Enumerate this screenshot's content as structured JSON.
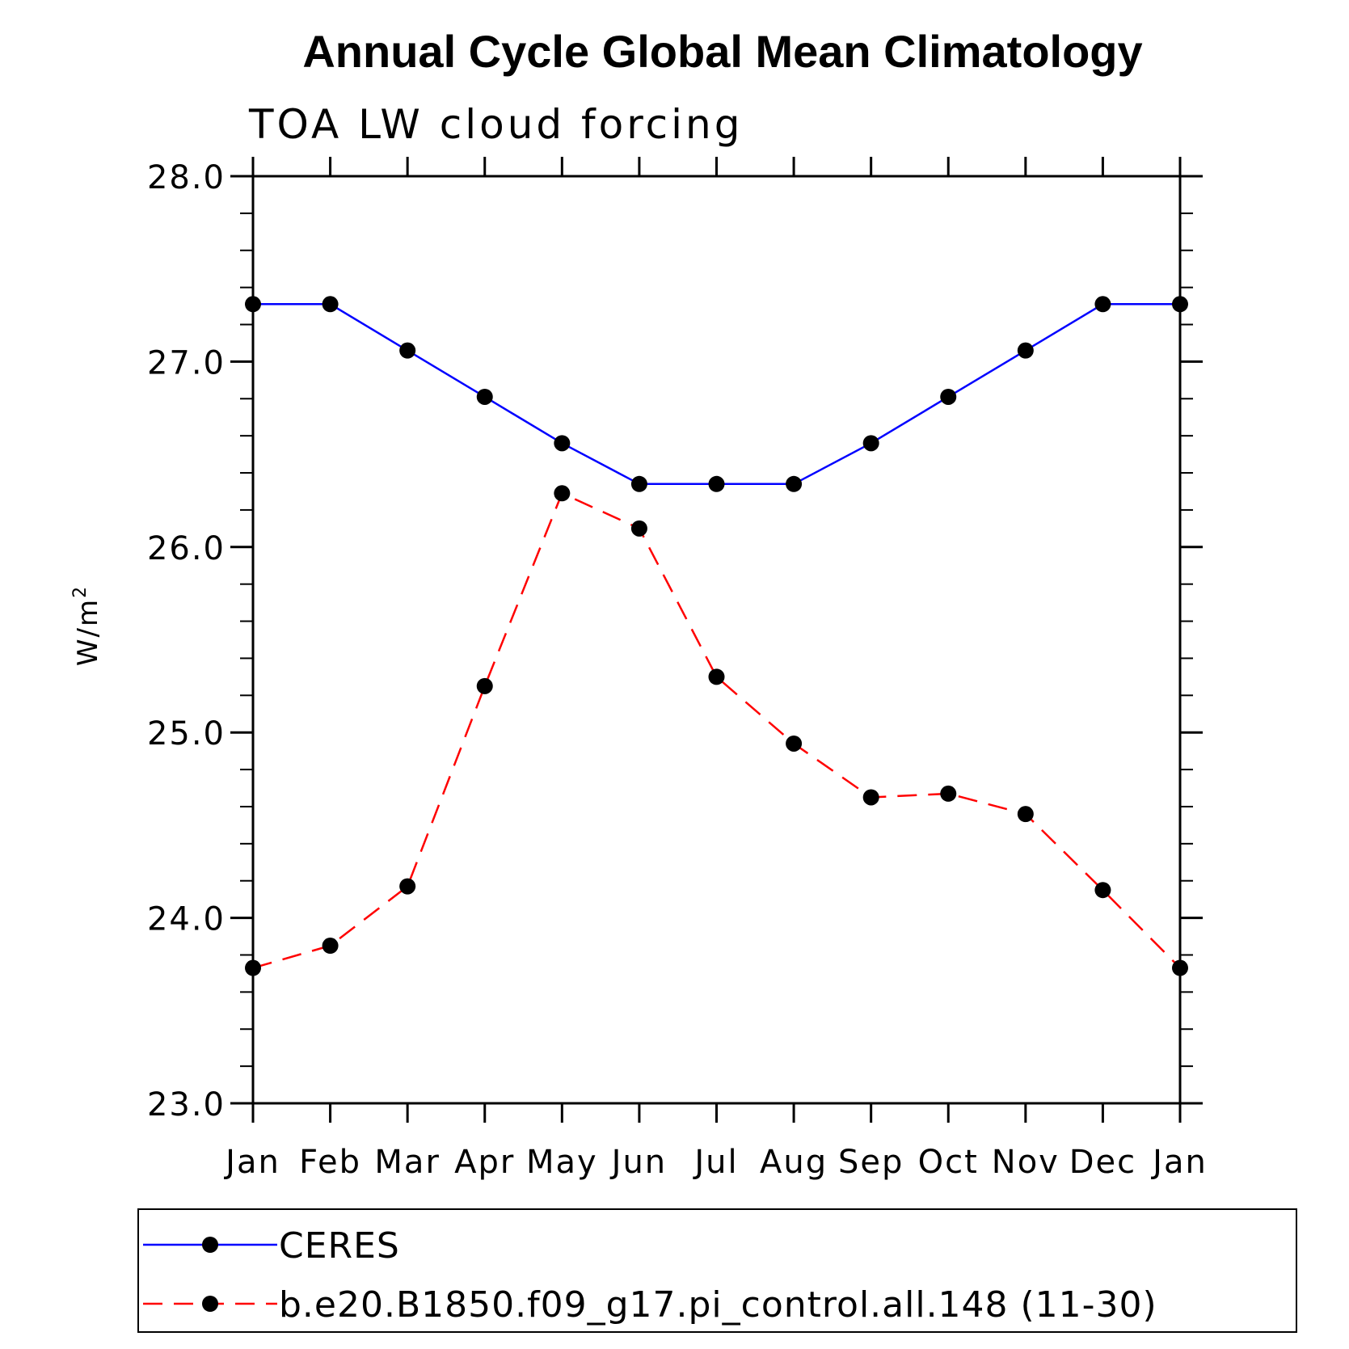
{
  "chart_data": {
    "type": "line",
    "title": "Annual Cycle Global Mean Climatology",
    "subtitle": "TOA LW cloud forcing",
    "ylabel_base": "W/m",
    "ylabel_sup": "2",
    "categories": [
      "Jan",
      "Feb",
      "Mar",
      "Apr",
      "May",
      "Jun",
      "Jul",
      "Aug",
      "Sep",
      "Oct",
      "Nov",
      "Dec",
      "Jan"
    ],
    "ylim": [
      23.0,
      28.0
    ],
    "yticks": [
      "23.0",
      "24.0",
      "25.0",
      "26.0",
      "27.0",
      "28.0"
    ],
    "ytick_values": [
      23.0,
      24.0,
      25.0,
      26.0,
      27.0,
      28.0
    ],
    "y_minor_step": 0.2,
    "grid": false,
    "legend_position": "bottom",
    "series": [
      {
        "name": "CERES",
        "color": "#0000ff",
        "dash": "solid",
        "values": [
          27.31,
          27.31,
          27.06,
          26.81,
          26.56,
          26.34,
          26.34,
          26.34,
          26.56,
          26.81,
          27.06,
          27.31,
          27.31
        ]
      },
      {
        "name": "b.e20.B1850.f09_g17.pi_control.all.148 (11-30)",
        "color": "#ff0000",
        "dash": "dashed",
        "values": [
          23.73,
          23.85,
          24.17,
          25.25,
          26.29,
          26.1,
          25.3,
          24.94,
          24.65,
          24.67,
          24.56,
          24.15,
          23.73
        ]
      }
    ]
  }
}
